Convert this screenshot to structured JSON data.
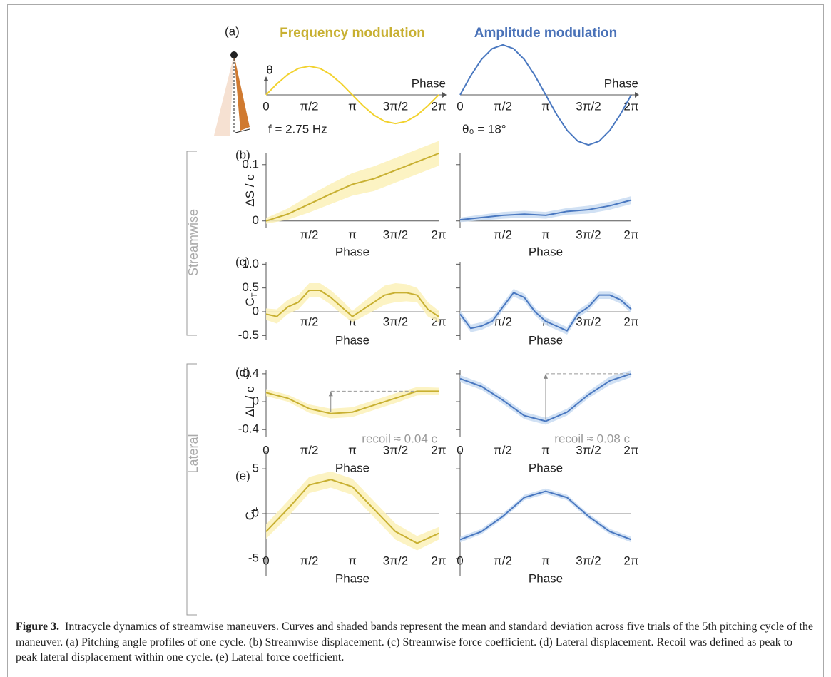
{
  "chart_data": [
    {
      "type": "line",
      "panel_label": "(a)",
      "title": "Frequency modulation",
      "title_color": "#c8b032",
      "y_label": "θ",
      "x_label": "Phase",
      "annotation": "f = 2.75 Hz",
      "x": [
        0,
        0.393,
        0.785,
        1.178,
        1.571,
        1.963,
        2.356,
        2.749,
        3.142,
        3.534,
        3.927,
        4.32,
        4.712,
        5.105,
        5.498,
        5.89,
        6.283
      ],
      "xlim": [
        0,
        6.283
      ],
      "xticks": [
        {
          "value": 0,
          "label": "0"
        },
        {
          "value": 1.571,
          "label": "π/2"
        },
        {
          "value": 3.142,
          "label": "π"
        },
        {
          "value": 4.712,
          "label": "3π/2"
        },
        {
          "value": 6.283,
          "label": "2π"
        }
      ],
      "ylim": [
        -20,
        20
      ],
      "series": [
        {
          "color": "#f2d22e",
          "values": [
            0,
            3.94,
            7.28,
            9.52,
            10.3,
            9.52,
            7.28,
            3.94,
            0,
            -3.94,
            -7.28,
            -9.52,
            -10.3,
            -9.52,
            -7.28,
            -3.94,
            0
          ]
        }
      ]
    },
    {
      "type": "line",
      "title": "Amplitude  modulation",
      "title_color": "#4a72b8",
      "x_label": "Phase",
      "annotation": "θ₀ = 18°",
      "x": [
        0,
        0.393,
        0.785,
        1.178,
        1.571,
        1.963,
        2.356,
        2.749,
        3.142,
        3.534,
        3.927,
        4.32,
        4.712,
        5.105,
        5.498,
        5.89,
        6.283
      ],
      "xlim": [
        0,
        6.283
      ],
      "xticks": [
        {
          "value": 0,
          "label": "0"
        },
        {
          "value": 1.571,
          "label": "π/2"
        },
        {
          "value": 3.142,
          "label": "π"
        },
        {
          "value": 4.712,
          "label": "3π/2"
        },
        {
          "value": 6.283,
          "label": "2π"
        }
      ],
      "ylim": [
        -20,
        20
      ],
      "series": [
        {
          "color": "#4a78c0",
          "values": [
            0,
            6.89,
            12.73,
            16.63,
            18,
            16.63,
            12.73,
            6.89,
            0,
            -6.89,
            -12.73,
            -16.63,
            -18,
            -16.63,
            -12.73,
            -6.89,
            0
          ]
        }
      ]
    },
    {
      "type": "band",
      "panel_label": "(b)",
      "y_label": "ΔS / c",
      "x_label": "Phase",
      "x": [
        0,
        0.785,
        1.571,
        2.356,
        3.142,
        3.927,
        4.712,
        5.498,
        6.283
      ],
      "xlim": [
        0,
        6.283
      ],
      "xticks": [
        {
          "value": 1.571,
          "label": "π/2"
        },
        {
          "value": 3.142,
          "label": "π"
        },
        {
          "value": 4.712,
          "label": "3π/2"
        },
        {
          "value": 6.283,
          "label": "2π"
        }
      ],
      "ylim": [
        -0.013,
        0.12
      ],
      "yticks": [
        0,
        0.1
      ],
      "ytick_labels": true,
      "series": [
        {
          "color": "#c8b032",
          "band_color": "#fbf1b8",
          "values": [
            0,
            0.012,
            0.03,
            0.048,
            0.065,
            0.075,
            0.09,
            0.105,
            0.12
          ],
          "std": [
            0.005,
            0.01,
            0.015,
            0.018,
            0.02,
            0.022,
            0.022,
            0.022,
            0.022
          ]
        }
      ]
    },
    {
      "type": "band",
      "x_label": "Phase",
      "x": [
        0,
        0.785,
        1.571,
        2.356,
        3.142,
        3.927,
        4.712,
        5.498,
        6.283
      ],
      "xlim": [
        0,
        6.283
      ],
      "xticks": [
        {
          "value": 1.571,
          "label": "π/2"
        },
        {
          "value": 3.142,
          "label": "π"
        },
        {
          "value": 4.712,
          "label": "3π/2"
        },
        {
          "value": 6.283,
          "label": "2π"
        }
      ],
      "ylim": [
        -0.013,
        0.12
      ],
      "yticks": [
        0,
        0.1
      ],
      "ytick_labels": false,
      "series": [
        {
          "color": "#4a78c0",
          "band_color": "#c9dcf2",
          "values": [
            0.002,
            0.006,
            0.01,
            0.012,
            0.01,
            0.017,
            0.02,
            0.027,
            0.037
          ],
          "std": [
            0.004,
            0.005,
            0.006,
            0.006,
            0.006,
            0.006,
            0.007,
            0.007,
            0.007
          ]
        }
      ]
    },
    {
      "type": "band",
      "panel_label": "(c)",
      "y_label": "C",
      "y_label_sub": "T",
      "x_label": "Phase",
      "zero_line": true,
      "x": [
        0,
        0.393,
        0.785,
        1.178,
        1.571,
        1.963,
        2.356,
        2.749,
        3.142,
        3.534,
        3.927,
        4.32,
        4.712,
        5.105,
        5.498,
        5.89,
        6.283
      ],
      "xlim": [
        0,
        6.283
      ],
      "xticks": [
        {
          "value": 1.571,
          "label": "π/2"
        },
        {
          "value": 3.142,
          "label": "π"
        },
        {
          "value": 4.712,
          "label": "3π/2"
        },
        {
          "value": 6.283,
          "label": "2π"
        }
      ],
      "ylim": [
        -0.6,
        1.05
      ],
      "yticks": [
        -0.5,
        0,
        0.5,
        {
          "value": 1,
          "label": "1.0"
        }
      ],
      "ytick_labels": true,
      "series": [
        {
          "color": "#c8b032",
          "band_color": "#fbf1b8",
          "values": [
            -0.05,
            -0.1,
            0.1,
            0.2,
            0.45,
            0.45,
            0.3,
            0.1,
            -0.1,
            0.05,
            0.2,
            0.35,
            0.4,
            0.4,
            0.35,
            0.05,
            -0.1
          ],
          "std": [
            0.12,
            0.15,
            0.15,
            0.15,
            0.15,
            0.15,
            0.15,
            0.15,
            0.12,
            0.15,
            0.18,
            0.2,
            0.2,
            0.18,
            0.15,
            0.15,
            0.12
          ]
        }
      ]
    },
    {
      "type": "band",
      "x_label": "Phase",
      "zero_line": true,
      "x": [
        0,
        0.393,
        0.785,
        1.178,
        1.571,
        1.963,
        2.356,
        2.749,
        3.142,
        3.534,
        3.927,
        4.32,
        4.712,
        5.105,
        5.498,
        5.89,
        6.283
      ],
      "xlim": [
        0,
        6.283
      ],
      "xticks": [
        {
          "value": 1.571,
          "label": "π/2"
        },
        {
          "value": 3.142,
          "label": "π"
        },
        {
          "value": 4.712,
          "label": "3π/2"
        },
        {
          "value": 6.283,
          "label": "2π"
        }
      ],
      "ylim": [
        -0.6,
        1.05
      ],
      "yticks": [
        -0.5,
        0,
        0.5,
        1
      ],
      "ytick_labels": false,
      "series": [
        {
          "color": "#4a78c0",
          "band_color": "#c9dcf2",
          "values": [
            -0.05,
            -0.35,
            -0.3,
            -0.2,
            0.1,
            0.4,
            0.3,
            0,
            -0.2,
            -0.3,
            -0.4,
            -0.05,
            0.1,
            0.35,
            0.35,
            0.25,
            0.05
          ],
          "std": [
            0.08,
            0.08,
            0.08,
            0.08,
            0.08,
            0.08,
            0.08,
            0.08,
            0.08,
            0.08,
            0.08,
            0.08,
            0.08,
            0.08,
            0.08,
            0.08,
            0.08
          ]
        }
      ]
    },
    {
      "type": "band",
      "panel_label": "(d)",
      "y_label": "ΔL / c",
      "x_label": "Phase",
      "annotation": "recoil ≈ 0.04 c",
      "x": [
        0,
        0.785,
        1.571,
        2.356,
        3.142,
        3.927,
        4.712,
        5.498,
        6.283
      ],
      "xlim": [
        0,
        6.283
      ],
      "xticks": [
        {
          "value": 0,
          "label": "0"
        },
        {
          "value": 1.571,
          "label": "π/2"
        },
        {
          "value": 3.142,
          "label": "π"
        },
        {
          "value": 4.712,
          "label": "3π/2"
        },
        {
          "value": 6.283,
          "label": "2π"
        }
      ],
      "ylim": [
        -0.5,
        0.45
      ],
      "yticks": [
        -0.4,
        0,
        0.4
      ],
      "ytick_labels": true,
      "series": [
        {
          "color": "#c8b032",
          "band_color": "#fbf1b8",
          "values": [
            0.13,
            0.05,
            -0.1,
            -0.17,
            -0.15,
            -0.05,
            0.05,
            0.15,
            0.15
          ],
          "std": [
            0.05,
            0.05,
            0.06,
            0.07,
            0.07,
            0.07,
            0.07,
            0.06,
            0.05
          ]
        }
      ]
    },
    {
      "type": "band",
      "x_label": "Phase",
      "annotation": "recoil ≈ 0.08 c",
      "x": [
        0,
        0.785,
        1.571,
        2.356,
        3.142,
        3.927,
        4.712,
        5.498,
        6.283
      ],
      "xlim": [
        0,
        6.283
      ],
      "xticks": [
        {
          "value": 0,
          "label": "0"
        },
        {
          "value": 1.571,
          "label": "π/2"
        },
        {
          "value": 3.142,
          "label": "π"
        },
        {
          "value": 4.712,
          "label": "3π/2"
        },
        {
          "value": 6.283,
          "label": "2π"
        }
      ],
      "ylim": [
        -0.5,
        0.45
      ],
      "yticks": [
        -0.4,
        0,
        0.4
      ],
      "ytick_labels": false,
      "series": [
        {
          "color": "#4a78c0",
          "band_color": "#c9dcf2",
          "values": [
            0.33,
            0.22,
            0.02,
            -0.2,
            -0.28,
            -0.15,
            0.1,
            0.3,
            0.4
          ],
          "std": [
            0.05,
            0.05,
            0.05,
            0.05,
            0.05,
            0.05,
            0.05,
            0.06,
            0.05
          ]
        }
      ]
    },
    {
      "type": "band",
      "panel_label": "(e)",
      "y_label": "C",
      "y_label_sub": "L",
      "x_label": "Phase",
      "zero_line": true,
      "x": [
        0,
        0.785,
        1.571,
        2.356,
        3.142,
        3.927,
        4.712,
        5.498,
        6.283
      ],
      "xlim": [
        0,
        6.283
      ],
      "xticks": [
        {
          "value": 0,
          "label": "0"
        },
        {
          "value": 1.571,
          "label": "π/2"
        },
        {
          "value": 3.142,
          "label": "π"
        },
        {
          "value": 4.712,
          "label": "3π/2"
        },
        {
          "value": 6.283,
          "label": "2π"
        }
      ],
      "ylim": [
        -7,
        7
      ],
      "yticks": [
        -5,
        0,
        5
      ],
      "ytick_labels": true,
      "series": [
        {
          "color": "#c8b032",
          "band_color": "#fbf1b8",
          "values": [
            -2,
            0.5,
            3.2,
            3.8,
            3,
            0.5,
            -2,
            -3.3,
            -2.2
          ],
          "std": [
            0.8,
            0.9,
            0.9,
            0.9,
            0.9,
            0.9,
            0.9,
            0.8,
            0.7
          ]
        }
      ]
    },
    {
      "type": "band",
      "x_label": "Phase",
      "zero_line": true,
      "x": [
        0,
        0.785,
        1.571,
        2.356,
        3.142,
        3.927,
        4.712,
        5.498,
        6.283
      ],
      "xlim": [
        0,
        6.283
      ],
      "xticks": [
        {
          "value": 0,
          "label": "0"
        },
        {
          "value": 1.571,
          "label": "π/2"
        },
        {
          "value": 3.142,
          "label": "π"
        },
        {
          "value": 4.712,
          "label": "3π/2"
        },
        {
          "value": 6.283,
          "label": "2π"
        }
      ],
      "ylim": [
        -7,
        7
      ],
      "yticks": [
        -5,
        0,
        5
      ],
      "ytick_labels": false,
      "series": [
        {
          "color": "#4a78c0",
          "band_color": "#c9dcf2",
          "values": [
            -2.9,
            -2,
            -0.3,
            1.8,
            2.5,
            1.8,
            -0.3,
            -2,
            -2.9
          ],
          "std": [
            0.3,
            0.3,
            0.3,
            0.3,
            0.3,
            0.3,
            0.3,
            0.3,
            0.3
          ]
        }
      ]
    }
  ],
  "side_labels": [
    "Streamwise",
    "Lateral"
  ],
  "caption": {
    "label": "Figure 3.",
    "text": "Intracycle dynamics of streamwise maneuvers. Curves and shaded bands represent the mean and standard deviation across five trials of the 5th pitching cycle of the maneuver. (a) Pitching angle profiles of one cycle. (b) Streamwise displacement. (c) Streamwise force coefficient. (d) Lateral displacement. Recoil was defined as peak to peak lateral displacement within one cycle. (e) Lateral force coefficient."
  }
}
